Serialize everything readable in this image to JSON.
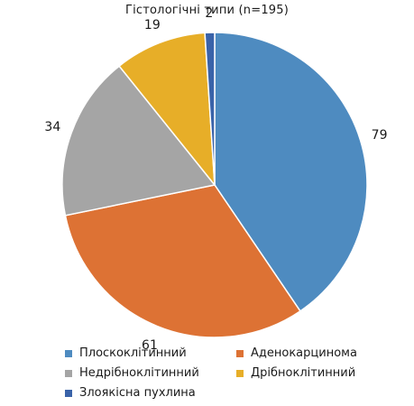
{
  "chart_data": {
    "type": "pie",
    "title": "Гістологічні типи (n=195)",
    "slices": [
      {
        "name": "Плоскоклітинний",
        "value": 79,
        "color": "#4e8bc0"
      },
      {
        "name": "Аденокарцинома",
        "value": 61,
        "color": "#dd7234"
      },
      {
        "name": "Недрібноклітинний",
        "value": 34,
        "color": "#a5a5a5"
      },
      {
        "name": "Дрібноклітинний",
        "value": 19,
        "color": "#e7ae28"
      },
      {
        "name": "Злоякісна пухлина",
        "value": 2,
        "color": "#3a63a9"
      }
    ],
    "total": 195,
    "legend_position": "bottom"
  }
}
